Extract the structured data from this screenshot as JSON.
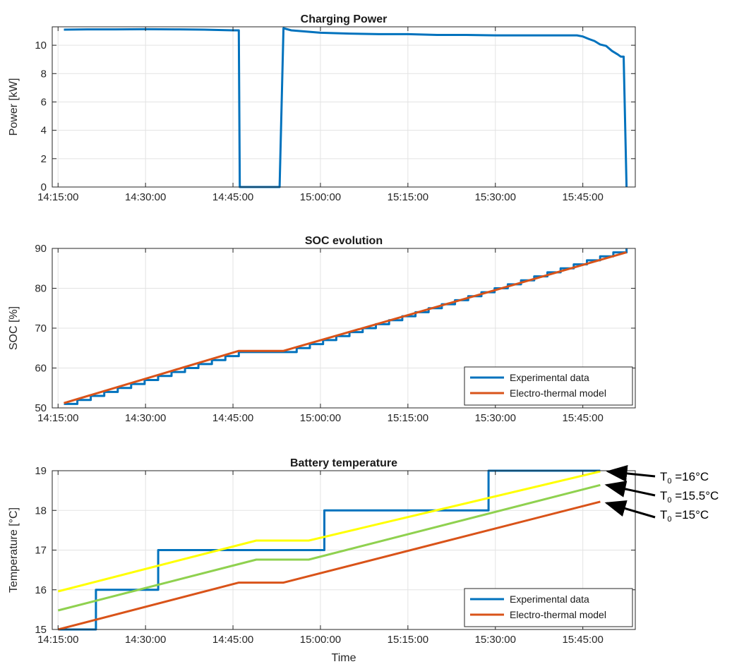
{
  "chart_data": [
    {
      "type": "line",
      "title": "Charging Power",
      "xlabel": "",
      "ylabel": "Power [kW]",
      "ylim": [
        0,
        11.3
      ],
      "yticks": [
        "0",
        "2",
        "4",
        "6",
        "8",
        "10"
      ],
      "xticks": [
        "14:15:00",
        "14:30:00",
        "14:45:00",
        "15:00:00",
        "15:15:00",
        "15:30:00",
        "15:45:00"
      ],
      "xlim_minutes": [
        -1,
        99
      ],
      "grid": true,
      "colors": {
        "series": "#0072bd"
      },
      "series": [
        {
          "name": "",
          "color": "#0072bd",
          "x": [
            "14:16:00",
            "14:20:00",
            "14:25:00",
            "14:30:00",
            "14:35:00",
            "14:40:00",
            "14:45:00",
            "14:46:00",
            "14:46:10",
            "14:53:00",
            "14:53:40",
            "14:55:00",
            "15:00:00",
            "15:05:00",
            "15:10:00",
            "15:15:00",
            "15:20:00",
            "15:25:00",
            "15:30:00",
            "15:35:00",
            "15:40:00",
            "15:44:00",
            "15:45:00",
            "15:46:00",
            "15:47:00",
            "15:48:00",
            "15:49:00",
            "15:50:00",
            "15:51:00",
            "15:51:30",
            "15:52:00",
            "15:52:30"
          ],
          "y": [
            11.1,
            11.12,
            11.12,
            11.13,
            11.12,
            11.1,
            11.05,
            11.05,
            0,
            0,
            11.2,
            11.05,
            10.88,
            10.82,
            10.78,
            10.78,
            10.73,
            10.73,
            10.7,
            10.7,
            10.7,
            10.7,
            10.62,
            10.45,
            10.3,
            10.05,
            9.95,
            9.6,
            9.35,
            9.2,
            9.2,
            0
          ]
        }
      ]
    },
    {
      "type": "line",
      "title": "SOC evolution",
      "xlabel": "",
      "ylabel": "SOC [%]",
      "ylim": [
        50,
        90
      ],
      "yticks": [
        "50",
        "60",
        "70",
        "80",
        "90"
      ],
      "xticks": [
        "14:15:00",
        "14:30:00",
        "14:45:00",
        "15:00:00",
        "15:15:00",
        "15:30:00",
        "15:45:00"
      ],
      "xlim_minutes": [
        -1,
        99
      ],
      "grid": true,
      "legend": {
        "position": "bottom-right",
        "entries": [
          "Experimental data",
          "Electro-thermal model"
        ]
      },
      "series": [
        {
          "name": "Experimental data",
          "color": "#0072bd",
          "kind": "staircase",
          "x": [
            "14:16:00",
            "14:46:00",
            "14:53:40",
            "15:52:30"
          ],
          "y": [
            51,
            64,
            64,
            90
          ]
        },
        {
          "name": "Electro-thermal model",
          "color": "#d95319",
          "x": [
            "14:16:00",
            "14:46:00",
            "14:53:40",
            "15:52:30"
          ],
          "y": [
            51.2,
            64.3,
            64.3,
            89
          ]
        }
      ]
    },
    {
      "type": "line",
      "title": "Battery temperature",
      "xlabel": "Time",
      "ylabel": "Temperature [°C]",
      "ylim": [
        15,
        19
      ],
      "yticks": [
        "15",
        "16",
        "17",
        "18",
        "19"
      ],
      "xticks": [
        "14:15:00",
        "14:30:00",
        "14:45:00",
        "15:00:00",
        "15:15:00",
        "15:30:00",
        "15:45:00"
      ],
      "xlim_minutes": [
        -1,
        99
      ],
      "grid": true,
      "legend": {
        "position": "bottom-right",
        "entries": [
          "Experimental data",
          "Electro-thermal model"
        ]
      },
      "series": [
        {
          "name": "Experimental data",
          "color": "#0072bd",
          "x": [
            "14:15:00",
            "14:21:30",
            "14:21:30",
            "14:32:10",
            "14:32:10",
            "15:00:40",
            "15:00:40",
            "15:28:50",
            "15:28:50",
            "15:48:00"
          ],
          "y": [
            15,
            15,
            16,
            16,
            17,
            17,
            18,
            18,
            19,
            19
          ]
        },
        {
          "name": "Electro-thermal model",
          "color": "#d95319",
          "x": [
            "14:15:00",
            "14:46:00",
            "14:53:40",
            "15:48:00"
          ],
          "y": [
            15,
            16.18,
            16.18,
            18.22
          ]
        },
        {
          "name": "",
          "color": "#8fd14f",
          "x": [
            "14:15:00",
            "14:49:00",
            "14:58:00",
            "15:48:00"
          ],
          "y": [
            15.48,
            16.76,
            16.76,
            18.64
          ]
        },
        {
          "name": "",
          "color": "#ffff00",
          "x": [
            "14:15:00",
            "14:49:00",
            "14:58:00",
            "15:48:00"
          ],
          "y": [
            15.96,
            17.24,
            17.24,
            18.98
          ]
        }
      ],
      "annotations": [
        {
          "text": "T",
          "sub": "0",
          "rest": " =16°C",
          "target_x": "15:48:00",
          "target_y": 18.98
        },
        {
          "text": "T",
          "sub": "0",
          "rest": " =15.5°C",
          "target_x": "15:48:00",
          "target_y": 18.64
        },
        {
          "text": "T",
          "sub": "0",
          "rest": " =15°C",
          "target_x": "15:48:00",
          "target_y": 18.22
        }
      ]
    }
  ]
}
